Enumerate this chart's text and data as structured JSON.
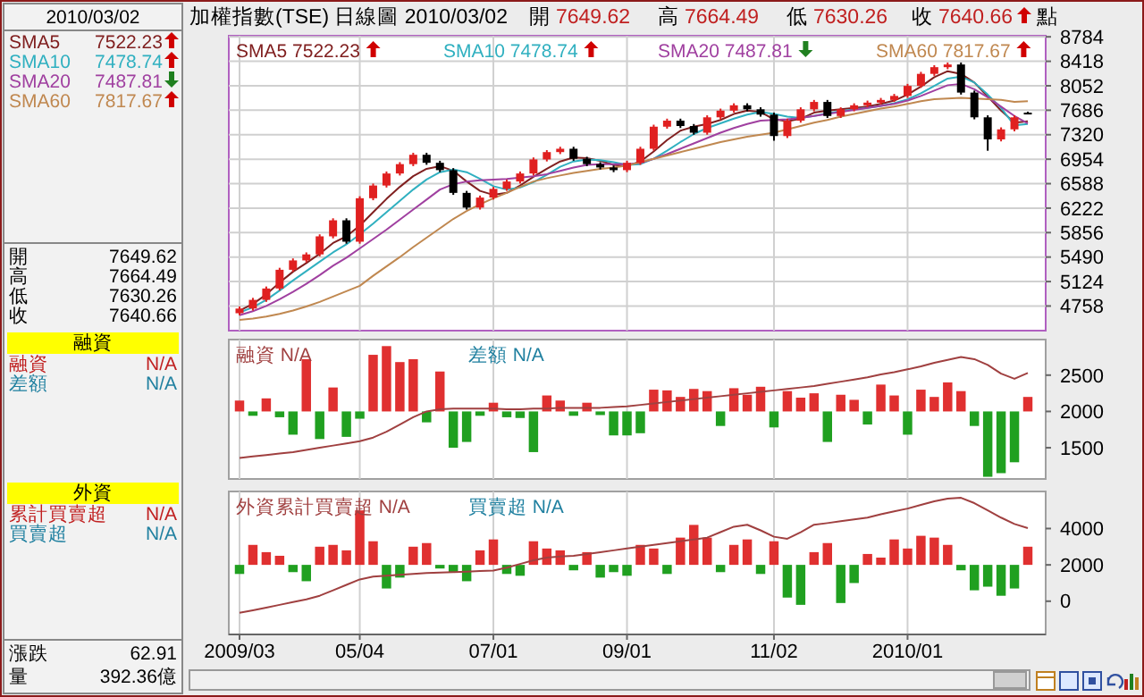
{
  "chart_data": [
    {
      "type": "candlestick",
      "title": "加權指數(TSE)  日線圖  2010/03/02",
      "annotations": [
        "開 7649.62",
        "高 7664.49",
        "低 7630.26",
        "收 7640.66",
        "點"
      ],
      "categories": [
        null,
        null,
        null,
        null,
        null,
        null,
        null,
        null,
        null,
        null,
        null,
        null,
        null,
        null,
        null,
        null,
        null,
        null,
        null,
        null,
        null,
        null,
        null,
        null,
        null,
        null,
        null,
        null,
        null,
        null,
        null,
        null,
        null,
        null,
        null,
        null,
        null,
        null,
        null,
        null,
        null,
        null,
        null,
        null,
        null,
        null,
        null,
        null,
        null,
        null,
        null,
        null,
        null,
        null,
        null,
        null,
        null,
        null,
        null,
        null
      ],
      "ohlc": [
        [
          4650,
          4750,
          4620,
          4720
        ],
        [
          4720,
          4880,
          4690,
          4850
        ],
        [
          4850,
          5050,
          4820,
          5020
        ],
        [
          5020,
          5330,
          4990,
          5300
        ],
        [
          5300,
          5470,
          5270,
          5440
        ],
        [
          5440,
          5560,
          5410,
          5530
        ],
        [
          5530,
          5830,
          5500,
          5800
        ],
        [
          5800,
          6070,
          5770,
          6040
        ],
        [
          6040,
          6070,
          5690,
          5720
        ],
        [
          5720,
          6400,
          5690,
          6370
        ],
        [
          6370,
          6590,
          6340,
          6560
        ],
        [
          6560,
          6770,
          6530,
          6740
        ],
        [
          6740,
          6910,
          6710,
          6880
        ],
        [
          6880,
          7050,
          6850,
          7020
        ],
        [
          7020,
          7050,
          6870,
          6900
        ],
        [
          6900,
          6930,
          6760,
          6790
        ],
        [
          6790,
          6820,
          6420,
          6450
        ],
        [
          6450,
          6480,
          6200,
          6230
        ],
        [
          6230,
          6410,
          6200,
          6380
        ],
        [
          6380,
          6540,
          6350,
          6510
        ],
        [
          6510,
          6650,
          6480,
          6620
        ],
        [
          6620,
          6770,
          6590,
          6740
        ],
        [
          6740,
          6980,
          6710,
          6950
        ],
        [
          6950,
          7090,
          6920,
          7060
        ],
        [
          7060,
          7140,
          7030,
          7110
        ],
        [
          7110,
          7140,
          6930,
          6960
        ],
        [
          6960,
          6990,
          6850,
          6880
        ],
        [
          6880,
          6910,
          6800,
          6830
        ],
        [
          6830,
          6860,
          6760,
          6790
        ],
        [
          6790,
          6930,
          6760,
          6900
        ],
        [
          6900,
          7140,
          6870,
          7110
        ],
        [
          7110,
          7470,
          7080,
          7440
        ],
        [
          7440,
          7560,
          7410,
          7530
        ],
        [
          7530,
          7560,
          7420,
          7450
        ],
        [
          7450,
          7480,
          7320,
          7350
        ],
        [
          7350,
          7610,
          7320,
          7580
        ],
        [
          7580,
          7710,
          7550,
          7680
        ],
        [
          7680,
          7790,
          7650,
          7760
        ],
        [
          7760,
          7790,
          7670,
          7700
        ],
        [
          7700,
          7730,
          7590,
          7620
        ],
        [
          7620,
          7650,
          7230,
          7300
        ],
        [
          7300,
          7560,
          7270,
          7530
        ],
        [
          7530,
          7730,
          7500,
          7700
        ],
        [
          7700,
          7840,
          7670,
          7810
        ],
        [
          7810,
          7840,
          7570,
          7600
        ],
        [
          7600,
          7730,
          7570,
          7700
        ],
        [
          7700,
          7790,
          7670,
          7760
        ],
        [
          7760,
          7830,
          7730,
          7800
        ],
        [
          7800,
          7870,
          7770,
          7840
        ],
        [
          7840,
          7930,
          7810,
          7900
        ],
        [
          7900,
          8080,
          7870,
          8050
        ],
        [
          8050,
          8260,
          8020,
          8230
        ],
        [
          8230,
          8360,
          8200,
          8330
        ],
        [
          8330,
          8400,
          8300,
          8370
        ],
        [
          8370,
          8400,
          7920,
          7950
        ],
        [
          7950,
          7980,
          7550,
          7580
        ],
        [
          7580,
          7610,
          7080,
          7250
        ],
        [
          7250,
          7430,
          7220,
          7400
        ],
        [
          7400,
          7610,
          7370,
          7580
        ],
        [
          7649.62,
          7664.49,
          7630.26,
          7640.66
        ]
      ],
      "series": [
        {
          "type": "line",
          "name": "SMA5 7522.23",
          "color": "#802020",
          "values": [
            4690,
            4790,
            4930,
            5110,
            5270,
            5400,
            5540,
            5700,
            5800,
            5960,
            6160,
            6360,
            6540,
            6700,
            6810,
            6850,
            6780,
            6620,
            6480,
            6420,
            6450,
            6560,
            6690,
            6810,
            6920,
            6980,
            6970,
            6930,
            6870,
            6850,
            6920,
            7070,
            7240,
            7380,
            7440,
            7480,
            7540,
            7630,
            7680,
            7660,
            7550,
            7520,
            7560,
            7650,
            7680,
            7700,
            7720,
            7740,
            7780,
            7830,
            7920,
            8040,
            8180,
            8270,
            8230,
            8100,
            7890,
            7680,
            7500,
            7520
          ]
        },
        {
          "type": "line",
          "name": "SMA10 7478.74",
          "color": "#30b0c0",
          "values": [
            4660,
            4740,
            4850,
            4990,
            5140,
            5280,
            5420,
            5560,
            5680,
            5830,
            5990,
            6160,
            6330,
            6500,
            6650,
            6760,
            6800,
            6760,
            6660,
            6550,
            6500,
            6530,
            6610,
            6720,
            6840,
            6920,
            6950,
            6940,
            6910,
            6870,
            6880,
            6960,
            7080,
            7210,
            7330,
            7420,
            7490,
            7560,
            7620,
            7660,
            7630,
            7590,
            7570,
            7600,
            7640,
            7670,
            7700,
            7720,
            7750,
            7790,
            7850,
            7940,
            8050,
            8160,
            8190,
            8100,
            7920,
            7720,
            7460,
            7480
          ]
        },
        {
          "type": "line",
          "name": "SMA20 7487.81",
          "color": "#a040a0",
          "values": [
            4620,
            4680,
            4760,
            4860,
            4970,
            5090,
            5220,
            5360,
            5480,
            5620,
            5760,
            5900,
            6050,
            6200,
            6350,
            6500,
            6580,
            6620,
            6640,
            6650,
            6660,
            6680,
            6700,
            6730,
            6780,
            6830,
            6870,
            6880,
            6880,
            6880,
            6900,
            6960,
            7030,
            7110,
            7190,
            7270,
            7350,
            7420,
            7480,
            7530,
            7540,
            7550,
            7570,
            7600,
            7630,
            7660,
            7690,
            7720,
            7750,
            7780,
            7830,
            7900,
            7980,
            8060,
            8080,
            8000,
            7880,
            7740,
            7600,
            7490
          ]
        },
        {
          "type": "line",
          "name": "SMA60 7817.67",
          "color": "#c08850",
          "values": [
            4550,
            4570,
            4600,
            4640,
            4690,
            4750,
            4820,
            4900,
            4980,
            5060,
            5210,
            5350,
            5490,
            5640,
            5780,
            5920,
            6060,
            6180,
            6280,
            6370,
            6450,
            6540,
            6620,
            6670,
            6710,
            6750,
            6780,
            6810,
            6830,
            6860,
            6910,
            6960,
            7010,
            7060,
            7110,
            7160,
            7210,
            7250,
            7290,
            7320,
            7350,
            7400,
            7450,
            7500,
            7540,
            7590,
            7630,
            7670,
            7710,
            7740,
            7780,
            7820,
            7850,
            7860,
            7870,
            7860,
            7850,
            7840,
            7810,
            7820
          ]
        }
      ],
      "ylim": [
        4390,
        8800
      ],
      "yticks": [
        4758,
        5124,
        5490,
        5856,
        6222,
        6588,
        6954,
        7320,
        7686,
        8052,
        8418,
        8784
      ],
      "grid": true,
      "tick_labels": "y"
    },
    {
      "type": "bar",
      "categories": [
        null,
        null,
        null,
        null,
        null,
        null,
        null,
        null,
        null,
        null,
        null,
        null,
        null,
        null,
        null,
        null,
        null,
        null,
        null,
        null,
        null,
        null,
        null,
        null,
        null,
        null,
        null,
        null,
        null,
        null,
        null,
        null,
        null,
        null,
        null,
        null,
        null,
        null,
        null,
        null,
        null,
        null,
        null,
        null,
        null,
        null,
        null,
        null,
        null,
        null,
        null,
        null,
        null,
        null,
        null,
        null,
        null,
        null,
        null,
        null
      ],
      "series": [
        {
          "type": "line",
          "name": "融資 N/A",
          "color": "#a04040",
          "values": [
            1360,
            1380,
            1400,
            1420,
            1440,
            1470,
            1500,
            1530,
            1560,
            1590,
            1640,
            1720,
            1820,
            1920,
            2000,
            2030,
            2040,
            2040,
            2040,
            2040,
            2030,
            2030,
            2040,
            2040,
            2050,
            2050,
            2050,
            2050,
            2060,
            2070,
            2090,
            2110,
            2130,
            2150,
            2170,
            2190,
            2210,
            2230,
            2250,
            2270,
            2290,
            2310,
            2330,
            2350,
            2380,
            2410,
            2440,
            2470,
            2510,
            2540,
            2580,
            2620,
            2670,
            2710,
            2750,
            2720,
            2640,
            2520,
            2450,
            2530
          ]
        },
        {
          "type": "bar",
          "name": "差額 N/A",
          "values": [
            150,
            -60,
            180,
            -80,
            -320,
            720,
            -380,
            330,
            -350,
            -100,
            780,
            900,
            680,
            720,
            -150,
            550,
            -500,
            -420,
            -60,
            120,
            -80,
            -90,
            -560,
            220,
            150,
            -60,
            120,
            -50,
            -330,
            -330,
            -300,
            300,
            290,
            200,
            310,
            280,
            -200,
            320,
            230,
            340,
            -220,
            280,
            190,
            250,
            -420,
            230,
            160,
            -180,
            370,
            220,
            -320,
            300,
            200,
            400,
            280,
            -200,
            -900,
            -850,
            -700,
            200
          ],
          "base": [
            2000,
            2000,
            2000,
            2000,
            2000,
            2000,
            2000,
            2000,
            2000,
            2000,
            2000,
            2000,
            2000,
            2000,
            2000,
            2000,
            2000,
            2000,
            2000,
            2000,
            2000,
            2000,
            2000,
            2000,
            2000,
            2000,
            2000,
            2000,
            2000,
            2000,
            2000,
            2000,
            2000,
            2000,
            2000,
            2000,
            2000,
            2000,
            2000,
            2000,
            2000,
            2000,
            2000,
            2000,
            2000,
            2000,
            2000,
            2000,
            2000,
            2000,
            2000,
            2000,
            2000,
            2000,
            2000,
            2000,
            2000,
            2000,
            2000,
            2000
          ],
          "colors": [
            "#e03030",
            "#20a020",
            "#e03030",
            "#20a020",
            "#20a020",
            "#e03030",
            "#20a020",
            "#e03030",
            "#20a020",
            "#20a020",
            "#e03030",
            "#e03030",
            "#e03030",
            "#e03030",
            "#20a020",
            "#e03030",
            "#20a020",
            "#20a020",
            "#20a020",
            "#e03030",
            "#20a020",
            "#20a020",
            "#20a020",
            "#e03030",
            "#e03030",
            "#20a020",
            "#e03030",
            "#20a020",
            "#20a020",
            "#20a020",
            "#20a020",
            "#e03030",
            "#e03030",
            "#e03030",
            "#e03030",
            "#e03030",
            "#20a020",
            "#e03030",
            "#e03030",
            "#e03030",
            "#20a020",
            "#e03030",
            "#e03030",
            "#e03030",
            "#20a020",
            "#e03030",
            "#e03030",
            "#20a020",
            "#e03030",
            "#e03030",
            "#20a020",
            "#e03030",
            "#e03030",
            "#e03030",
            "#e03030",
            "#20a020",
            "#20a020",
            "#20a020",
            "#20a020",
            "#e03030"
          ]
        }
      ],
      "ylim": [
        1070,
        2990
      ],
      "yticks": [
        1500,
        2000,
        2500
      ],
      "grid": "x",
      "tick_labels": "y"
    },
    {
      "type": "bar",
      "categories": [
        "2009/03",
        null,
        null,
        null,
        null,
        null,
        null,
        null,
        null,
        "05/04",
        null,
        null,
        null,
        null,
        null,
        null,
        null,
        null,
        null,
        "07/01",
        null,
        null,
        null,
        null,
        null,
        null,
        null,
        null,
        null,
        "09/01",
        null,
        null,
        null,
        null,
        null,
        null,
        null,
        null,
        null,
        null,
        "11/02",
        null,
        null,
        null,
        null,
        null,
        null,
        null,
        null,
        null,
        "2010/01",
        null,
        null,
        null,
        null,
        null,
        null,
        null,
        null,
        null
      ],
      "series": [
        {
          "type": "line",
          "name": "外資累計買賣超 N/A",
          "color": "#a04040",
          "values": [
            -640,
            -500,
            -350,
            -200,
            -50,
            100,
            300,
            600,
            900,
            1200,
            1350,
            1400,
            1450,
            1500,
            1550,
            1580,
            1600,
            1630,
            1660,
            1690,
            1850,
            2050,
            2250,
            2400,
            2460,
            2500,
            2600,
            2700,
            2800,
            2900,
            3000,
            3100,
            3200,
            3300,
            3400,
            3500,
            3800,
            4100,
            4210,
            3900,
            3550,
            3435,
            3800,
            4210,
            4300,
            4400,
            4500,
            4600,
            4790,
            4950,
            5100,
            5300,
            5500,
            5650,
            5690,
            5400,
            5000,
            4600,
            4250,
            4020
          ]
        },
        {
          "type": "bar",
          "name": "買賣超 N/A",
          "values": [
            -500,
            1100,
            700,
            500,
            -400,
            -900,
            1000,
            1100,
            800,
            3000,
            1300,
            -1300,
            -700,
            1000,
            1200,
            -200,
            -400,
            -900,
            800,
            1400,
            -500,
            -600,
            1300,
            900,
            800,
            -300,
            700,
            -700,
            -400,
            -600,
            1100,
            900,
            -500,
            1500,
            2200,
            1500,
            -400,
            1100,
            1400,
            -500,
            1300,
            -1800,
            -2200,
            700,
            1200,
            -2100,
            -1000,
            600,
            400,
            1400,
            900,
            1600,
            1500,
            1100,
            -300,
            -1400,
            -1200,
            -1700,
            -1300,
            1000
          ],
          "base": [
            2000,
            2000,
            2000,
            2000,
            2000,
            2000,
            2000,
            2000,
            2000,
            2000,
            2000,
            2000,
            2000,
            2000,
            2000,
            2000,
            2000,
            2000,
            2000,
            2000,
            2000,
            2000,
            2000,
            2000,
            2000,
            2000,
            2000,
            2000,
            2000,
            2000,
            2000,
            2000,
            2000,
            2000,
            2000,
            2000,
            2000,
            2000,
            2000,
            2000,
            2000,
            2000,
            2000,
            2000,
            2000,
            2000,
            2000,
            2000,
            2000,
            2000,
            2000,
            2000,
            2000,
            2000,
            2000,
            2000,
            2000,
            2000,
            2000,
            2000
          ],
          "colors": [
            "#20a020",
            "#e03030",
            "#e03030",
            "#e03030",
            "#20a020",
            "#20a020",
            "#e03030",
            "#e03030",
            "#e03030",
            "#e03030",
            "#e03030",
            "#20a020",
            "#20a020",
            "#e03030",
            "#e03030",
            "#20a020",
            "#20a020",
            "#20a020",
            "#e03030",
            "#e03030",
            "#20a020",
            "#20a020",
            "#e03030",
            "#e03030",
            "#e03030",
            "#20a020",
            "#e03030",
            "#20a020",
            "#20a020",
            "#20a020",
            "#e03030",
            "#e03030",
            "#20a020",
            "#e03030",
            "#e03030",
            "#e03030",
            "#20a020",
            "#e03030",
            "#e03030",
            "#20a020",
            "#e03030",
            "#20a020",
            "#20a020",
            "#e03030",
            "#e03030",
            "#20a020",
            "#20a020",
            "#e03030",
            "#e03030",
            "#e03030",
            "#e03030",
            "#e03030",
            "#e03030",
            "#e03030",
            "#20a020",
            "#20a020",
            "#20a020",
            "#20a020",
            "#20a020",
            "#e03030"
          ]
        }
      ],
      "ylim": [
        -1830,
        6040
      ],
      "yticks": [
        0,
        2000,
        4000
      ],
      "grid": "x"
    },
    {
      "type": "other",
      "title": "2010/03/02",
      "annotations": [
        "SMA5",
        "7522.23",
        "SMA10",
        "7478.74",
        "SMA20",
        "7487.81",
        "SMA60",
        "7817.67",
        "開",
        "7649.62",
        "高",
        "7664.49",
        "低",
        "7630.26",
        "收",
        "7640.66",
        "融資",
        "融資",
        "N/A",
        "差額",
        "N/A",
        "外資",
        "累計買賣超",
        "N/A",
        "買賣超",
        "N/A",
        "漲跌",
        "62.91",
        "量",
        "392.36億"
      ]
    }
  ]
}
